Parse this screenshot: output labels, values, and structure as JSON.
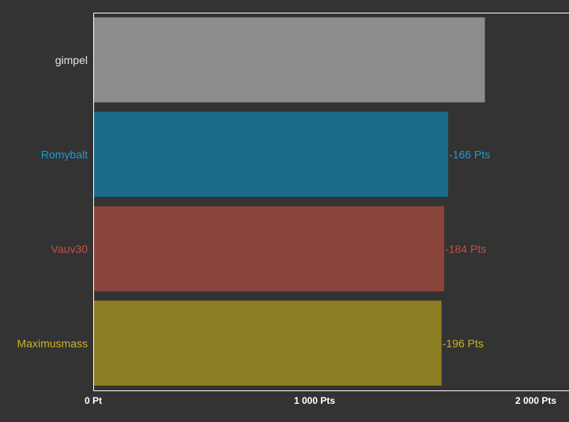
{
  "chart_data": {
    "type": "bar",
    "orientation": "horizontal",
    "categories": [
      "gimpel",
      "Romybalt",
      "Vauv30",
      "Maximusmass"
    ],
    "values": [
      1770,
      1604,
      1586,
      1574
    ],
    "data_labels": [
      "",
      "-166 Pts",
      "-184 Pts",
      "-196 Pts"
    ],
    "colors": [
      "#8c8c8c",
      "#1a6b8a",
      "#8b443c",
      "#8c7e22"
    ],
    "label_colors": [
      "#e6e6e6",
      "#1a9bd6",
      "#c0504a",
      "#cdb324"
    ],
    "x_ticks": [
      {
        "value": 0,
        "label": "0 Pt"
      },
      {
        "value": 1000,
        "label": "1 000 Pts"
      },
      {
        "value": 2000,
        "label": "2 000 Pts"
      }
    ],
    "xlim": [
      0,
      2150
    ],
    "grid": false,
    "legend": "none",
    "title": "",
    "xlabel": "",
    "ylabel": "",
    "background": "#333333",
    "axis_color": "#ffffff"
  }
}
